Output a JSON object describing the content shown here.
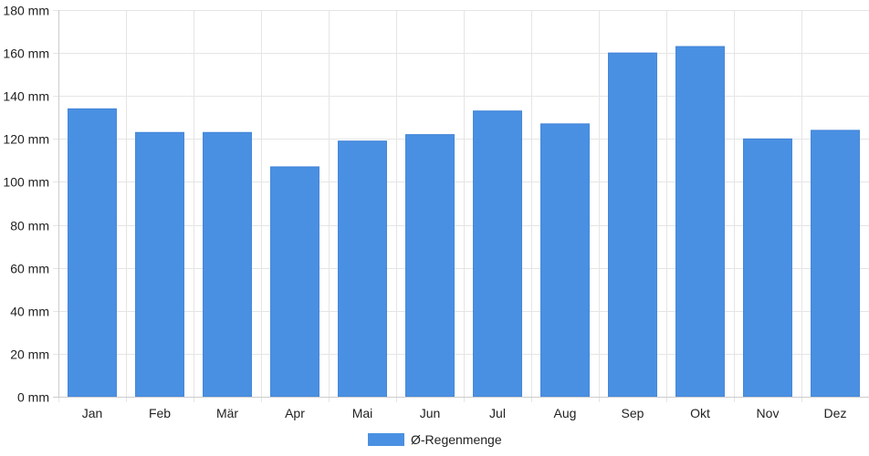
{
  "chart_data": {
    "type": "bar",
    "categories": [
      "Jan",
      "Feb",
      "Mär",
      "Apr",
      "Mai",
      "Jun",
      "Jul",
      "Aug",
      "Sep",
      "Okt",
      "Nov",
      "Dez"
    ],
    "series": [
      {
        "name": "Ø-Regenmenge",
        "values": [
          134,
          123,
          123,
          107,
          119,
          122,
          133,
          127,
          160,
          163,
          120,
          124
        ],
        "color": "#4a90e2"
      }
    ],
    "y_unit": "mm",
    "y_tick_labels": [
      "0 mm",
      "20 mm",
      "40 mm",
      "60 mm",
      "80 mm",
      "100 mm",
      "120 mm",
      "140 mm",
      "160 mm",
      "180 mm"
    ],
    "ylim": [
      0,
      180
    ],
    "y_step": 20,
    "grid": true,
    "legend_position": "bottom-center",
    "gridColor": "#e5e5e5",
    "axisColor": "#cccccc"
  }
}
